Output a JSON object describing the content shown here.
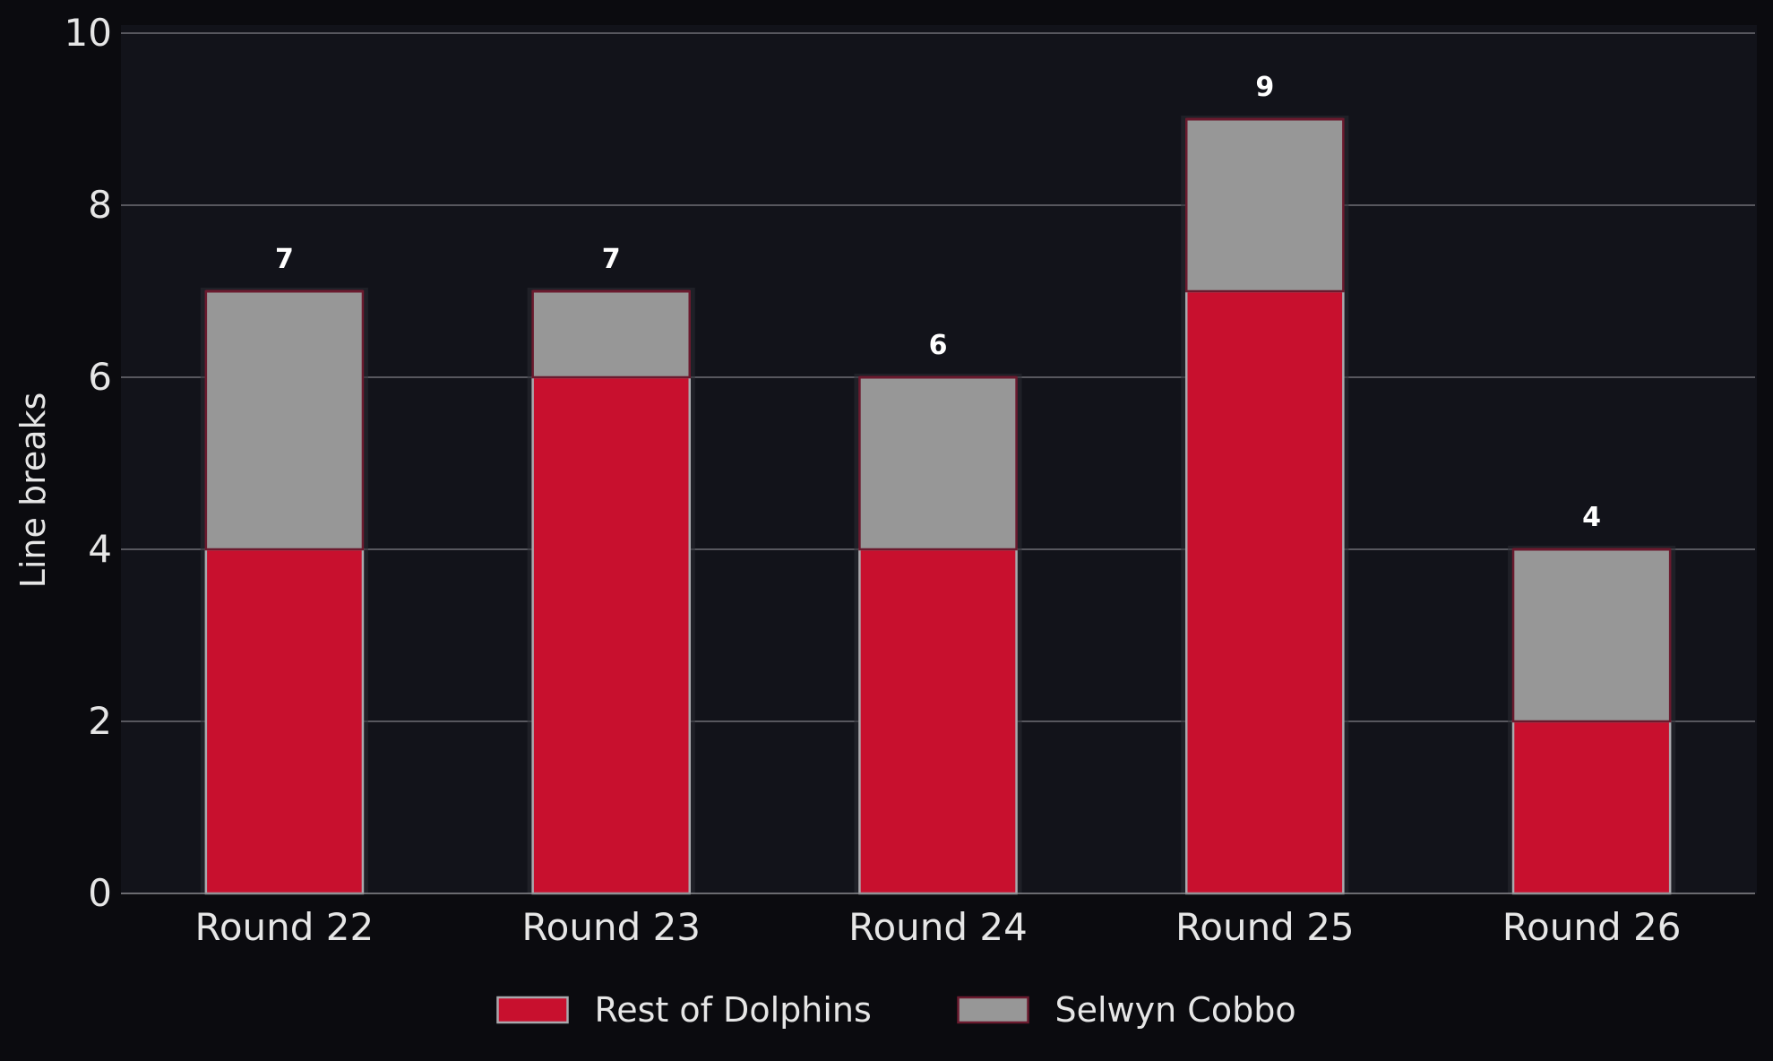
{
  "chart_data": {
    "type": "bar",
    "stacked": true,
    "categories": [
      "Round 22",
      "Round 23",
      "Round 24",
      "Round 25",
      "Round 26"
    ],
    "series": [
      {
        "name": "Rest of Dolphins",
        "values": [
          4,
          6,
          4,
          7,
          2
        ],
        "color": "#c8102e"
      },
      {
        "name": "Selwyn Cobbo",
        "values": [
          3,
          1,
          2,
          2,
          2
        ],
        "color": "#979797"
      }
    ],
    "totals": [
      "7",
      "7",
      "6",
      "9",
      "4"
    ],
    "ylabel": "Line breaks",
    "ylim": [
      0,
      10
    ],
    "yticks": [
      "0",
      "2",
      "4",
      "6",
      "8",
      "10"
    ],
    "grid": true,
    "legend_position": "bottom-center",
    "colors": {
      "page_background": "#0b0b0f",
      "plot_background": "#12131a",
      "grid": "#6e6e74",
      "bar_edge": "#6b1a2e",
      "text": "#e6e6e6"
    }
  }
}
